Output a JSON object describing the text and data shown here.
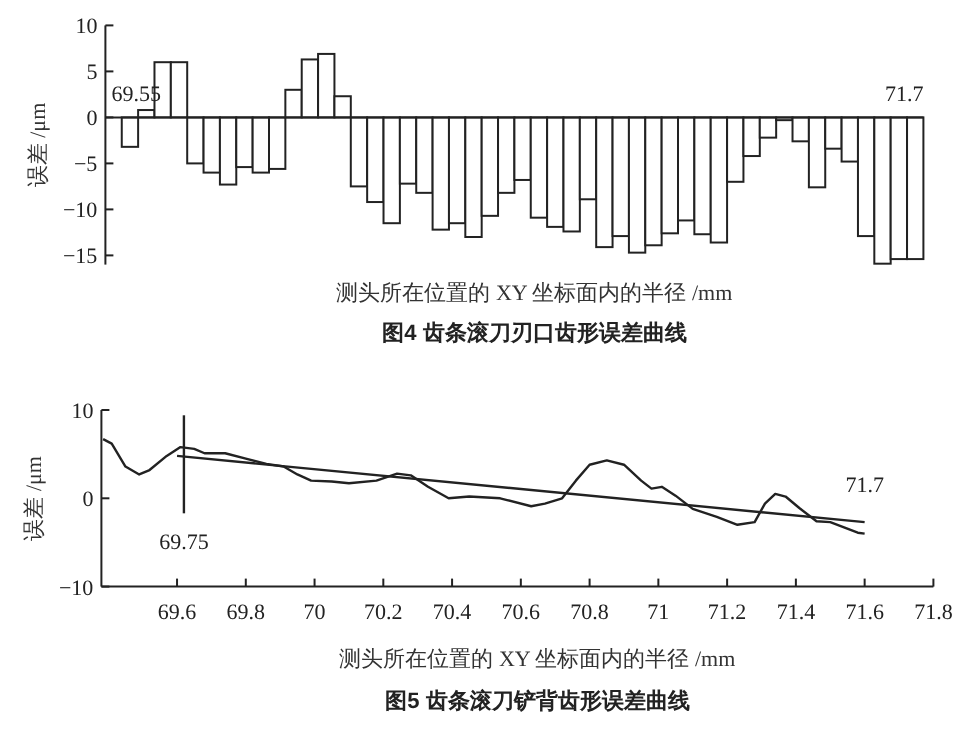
{
  "chart_data": [
    {
      "type": "bar",
      "title": "图4  齿条滚刀刃口齿形误差曲线",
      "xlabel": "测头所在位置的 XY 坐标面内的半径 /mm",
      "ylabel": "误差 /μm",
      "categories": [
        null,
        null,
        null,
        null,
        null,
        null,
        null,
        null,
        null,
        null,
        null,
        null,
        null,
        null,
        null,
        null,
        null,
        null,
        null,
        null,
        null,
        null,
        null,
        null,
        null,
        null,
        null,
        null,
        null,
        null,
        null,
        null,
        null,
        null,
        null,
        null,
        null,
        null,
        null,
        null,
        null,
        null,
        null,
        null,
        null,
        null,
        null,
        null,
        null,
        null
      ],
      "values": [
        null,
        -3.2,
        0.8,
        6,
        6,
        -5,
        -6,
        -7.3,
        -5.4,
        -6,
        -5.6,
        3,
        6.3,
        6.9,
        2.3,
        -7.5,
        -9.2,
        -11.5,
        -7.2,
        -8.2,
        -12.2,
        -11.5,
        -13,
        -10.7,
        -8.2,
        -6.8,
        -10.9,
        -11.9,
        -12.4,
        -8.9,
        -14.1,
        -12.9,
        -14.7,
        -13.9,
        -12.6,
        -11.2,
        -12.7,
        -13.6,
        -7,
        -4.2,
        -2.2,
        -0.3,
        -2.6,
        -7.6,
        -3.4,
        -4.8,
        -12.9,
        -15.9,
        -15.4,
        -15.4
      ],
      "color": "#ffffff",
      "ylim": [
        -16,
        10
      ],
      "yticks": [
        -15,
        -10,
        -5,
        0,
        5,
        10
      ],
      "annotations": [
        "69.55",
        "71.7"
      ]
    },
    {
      "type": "line",
      "title": "图5  齿条滚刀铲背齿形误差曲线",
      "xlabel": "测头所在位置的 XY 坐标面内的半径 /mm",
      "ylabel": "误差 /μm",
      "xlim": [
        69.38,
        71.8
      ],
      "xticks": [
        69.6,
        69.8,
        70,
        70.2,
        70.4,
        70.6,
        70.8,
        71,
        71.2,
        71.4,
        71.6,
        71.8
      ],
      "ylim": [
        -10,
        10
      ],
      "yticks": [
        -10,
        0,
        10
      ],
      "series": [
        {
          "color": "#222222",
          "x": [
            69.385,
            69.41,
            69.45,
            69.49,
            69.52,
            69.57,
            69.61,
            69.65,
            69.68,
            69.74,
            69.8,
            69.86,
            69.91,
            69.95,
            69.99,
            70.05,
            70.1,
            70.18,
            70.24,
            70.28,
            70.33,
            70.39,
            70.45,
            70.54,
            70.56,
            70.63,
            70.67,
            70.72,
            70.76,
            70.8,
            70.85,
            70.9,
            70.95,
            70.98,
            71.01,
            71.05,
            71.1,
            71.17,
            71.23,
            71.28,
            71.31,
            71.34,
            71.37,
            71.41,
            71.46,
            71.5,
            71.54,
            71.58,
            71.6
          ],
          "values": [
            6.7,
            6.2,
            3.6,
            2.7,
            3.2,
            4.8,
            5.8,
            5.6,
            5.1,
            5.1,
            4.5,
            3.9,
            3.6,
            2.7,
            2.0,
            1.9,
            1.7,
            2.0,
            2.8,
            2.6,
            1.3,
            0,
            0.2,
            0,
            -0.2,
            -0.9,
            -0.6,
            0,
            2.0,
            3.8,
            4.3,
            3.8,
            2.0,
            1.1,
            1.3,
            0.3,
            -1.2,
            -2.1,
            -3.0,
            -2.7,
            -0.6,
            0.5,
            0.2,
            -1.1,
            -2.6,
            -2.7,
            -3.3,
            -3.9,
            -4.0
          ]
        },
        {
          "color": "#222222",
          "x": [
            69.6,
            71.6
          ],
          "values": [
            4.8,
            -2.7
          ]
        },
        {
          "color": "#222222",
          "x": [
            69.62,
            69.62
          ],
          "values": [
            9.4,
            -1.7
          ]
        }
      ],
      "annotations": [
        "69.75",
        "71.7"
      ]
    }
  ]
}
